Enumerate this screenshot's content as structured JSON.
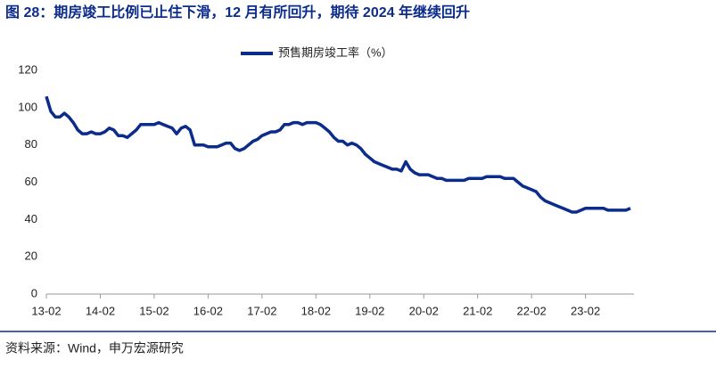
{
  "chart_data": {
    "type": "line",
    "title": "图 28：期房竣工比例已止住下滑，12 月有所回升，期待 2024 年继续回升",
    "source": "资料来源：Wind，申万宏源研究",
    "categories": [
      "13-02",
      null,
      null,
      null,
      null,
      null,
      null,
      null,
      null,
      null,
      null,
      null,
      "14-02",
      null,
      null,
      null,
      null,
      null,
      null,
      null,
      null,
      null,
      null,
      null,
      "15-02",
      null,
      null,
      null,
      null,
      null,
      null,
      null,
      null,
      null,
      null,
      null,
      "16-02",
      null,
      null,
      null,
      null,
      null,
      null,
      null,
      null,
      null,
      null,
      null,
      "17-02",
      null,
      null,
      null,
      null,
      null,
      null,
      null,
      null,
      null,
      null,
      null,
      "18-02",
      null,
      null,
      null,
      null,
      null,
      null,
      null,
      null,
      null,
      null,
      null,
      "19-02",
      null,
      null,
      null,
      null,
      null,
      null,
      null,
      null,
      null,
      null,
      null,
      "20-02",
      null,
      null,
      null,
      null,
      null,
      null,
      null,
      null,
      null,
      null,
      null,
      "21-02",
      null,
      null,
      null,
      null,
      null,
      null,
      null,
      null,
      null,
      null,
      null,
      "22-02",
      null,
      null,
      null,
      null,
      null,
      null,
      null,
      null,
      null,
      null,
      null,
      "23-02",
      null,
      null,
      null,
      null,
      null,
      null,
      null,
      null,
      null,
      null
    ],
    "series": [
      {
        "name": "预售期房竣工率（%）",
        "color": "#0c2c8c",
        "values": [
          106,
          98,
          95,
          95,
          97,
          95,
          92,
          88,
          86,
          86,
          87,
          86,
          86,
          87,
          89,
          88,
          85,
          85,
          84,
          86,
          88,
          91,
          91,
          91,
          91,
          92,
          91,
          90,
          89,
          86,
          89,
          90,
          88,
          80,
          80,
          80,
          79,
          79,
          79,
          80,
          81,
          81,
          78,
          77,
          78,
          80,
          82,
          83,
          85,
          86,
          87,
          87,
          88,
          91,
          91,
          92,
          92,
          91,
          92,
          92,
          92,
          91,
          89,
          87,
          84,
          82,
          82,
          80,
          81,
          80,
          78,
          75,
          73,
          71,
          70,
          69,
          68,
          67,
          67,
          66,
          71,
          67,
          65,
          64,
          64,
          64,
          63,
          62,
          62,
          61,
          61,
          61,
          61,
          61,
          62,
          62,
          62,
          62,
          63,
          63,
          63,
          63,
          62,
          62,
          62,
          60,
          58,
          57,
          56,
          55,
          52,
          50,
          49,
          48,
          47,
          46,
          45,
          44,
          44,
          45,
          46,
          46,
          46,
          46,
          46,
          45,
          45,
          45,
          45,
          45,
          46
        ]
      }
    ],
    "ylim": [
      0,
      120
    ],
    "yticks": [
      0,
      20,
      40,
      60,
      80,
      100,
      120
    ],
    "legend": "top"
  }
}
